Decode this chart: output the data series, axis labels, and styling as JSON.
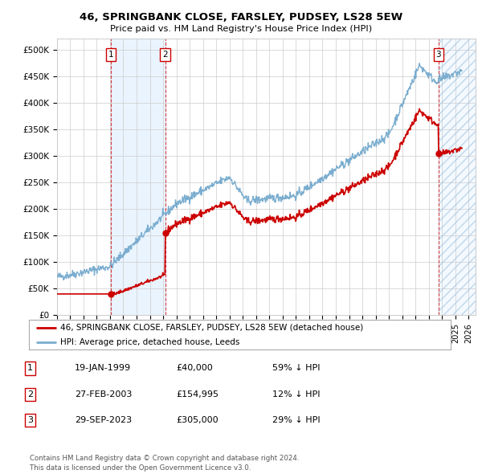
{
  "title": "46, SPRINGBANK CLOSE, FARSLEY, PUDSEY, LS28 5EW",
  "subtitle": "Price paid vs. HM Land Registry's House Price Index (HPI)",
  "ylabel_ticks": [
    "£0",
    "£50K",
    "£100K",
    "£150K",
    "£200K",
    "£250K",
    "£300K",
    "£350K",
    "£400K",
    "£450K",
    "£500K"
  ],
  "ytick_values": [
    0,
    50000,
    100000,
    150000,
    200000,
    250000,
    300000,
    350000,
    400000,
    450000,
    500000
  ],
  "ylim": [
    0,
    520000
  ],
  "xlim_start": 1995.0,
  "xlim_end": 2026.5,
  "xtick_years": [
    1995,
    1996,
    1997,
    1998,
    1999,
    2000,
    2001,
    2002,
    2003,
    2004,
    2005,
    2006,
    2007,
    2008,
    2009,
    2010,
    2011,
    2012,
    2013,
    2014,
    2015,
    2016,
    2017,
    2018,
    2019,
    2020,
    2021,
    2022,
    2023,
    2024,
    2025,
    2026
  ],
  "hpi_color": "#7aadcf",
  "price_color": "#cc0000",
  "sale1_x": 1999.05,
  "sale1_y": 40000,
  "sale2_x": 2003.16,
  "sale2_y": 154995,
  "sale3_x": 2023.74,
  "sale3_y": 305000,
  "legend_label1": "46, SPRINGBANK CLOSE, FARSLEY, PUDSEY, LS28 5EW (detached house)",
  "legend_label2": "HPI: Average price, detached house, Leeds",
  "table_rows": [
    {
      "num": "1",
      "date": "19-JAN-1999",
      "price": "£40,000",
      "pct": "59% ↓ HPI"
    },
    {
      "num": "2",
      "date": "27-FEB-2003",
      "price": "£154,995",
      "pct": "12% ↓ HPI"
    },
    {
      "num": "3",
      "date": "29-SEP-2023",
      "price": "£305,000",
      "pct": "29% ↓ HPI"
    }
  ],
  "footer": "Contains HM Land Registry data © Crown copyright and database right 2024.\nThis data is licensed under the Open Government Licence v3.0.",
  "bg_color": "#ffffff",
  "plot_bg_color": "#ffffff",
  "grid_color": "#cccccc",
  "shade1_x_start": 1999.05,
  "shade1_x_end": 2003.16,
  "shade2_x_start": 2023.74,
  "shade2_x_end": 2026.5,
  "vline_color": "#cc0000",
  "shade_color": "#ddeeff"
}
